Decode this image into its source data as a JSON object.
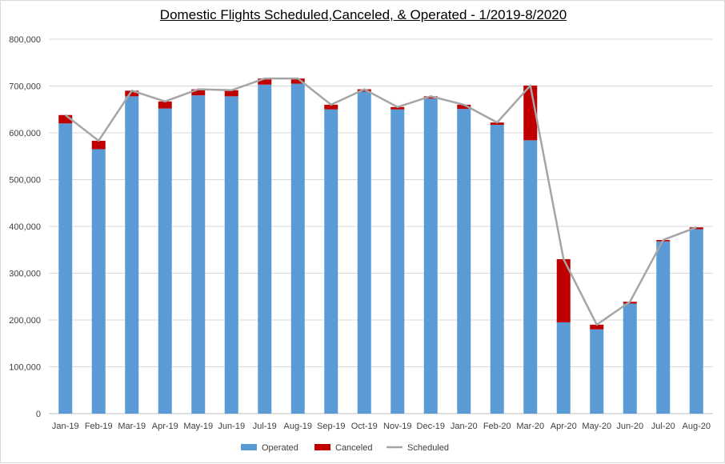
{
  "chart_data": {
    "type": "bar",
    "stacked": true,
    "title": "Domestic Flights Scheduled,Canceled, & Operated - 1/2019-8/2020",
    "categories": [
      "Jan-19",
      "Feb-19",
      "Mar-19",
      "Apr-19",
      "May-19",
      "Jun-19",
      "Jul-19",
      "Aug-19",
      "Sep-19",
      "Oct-19",
      "Nov-19",
      "Dec-19",
      "Jan-20",
      "Feb-20",
      "Mar-20",
      "Apr-20",
      "May-20",
      "Jun-20",
      "Jul-20",
      "Aug-20"
    ],
    "series": [
      {
        "name": "Operated",
        "type": "bar",
        "color": "#5b9bd5",
        "values": [
          620000,
          565000,
          678000,
          652000,
          680000,
          678000,
          703000,
          705000,
          650000,
          688000,
          650000,
          673000,
          651000,
          617000,
          584000,
          195000,
          180000,
          235000,
          368000,
          394000
        ]
      },
      {
        "name": "Canceled",
        "type": "bar",
        "color": "#c00000",
        "values": [
          18000,
          18000,
          12000,
          15000,
          13000,
          13000,
          13000,
          11000,
          10000,
          5000,
          5000,
          5000,
          9000,
          5000,
          117000,
          135000,
          10000,
          4000,
          3000,
          4000
        ]
      },
      {
        "name": "Scheduled",
        "type": "line",
        "color": "#a5a5a5",
        "values": [
          638000,
          583000,
          690000,
          667000,
          693000,
          691000,
          716000,
          716000,
          660000,
          693000,
          655000,
          678000,
          660000,
          622000,
          701000,
          330000,
          190000,
          239000,
          371000,
          398000
        ]
      }
    ],
    "ylim": [
      0,
      800000
    ],
    "yticks": [
      "0",
      "100,000",
      "200,000",
      "300,000",
      "400,000",
      "500,000",
      "600,000",
      "700,000",
      "800,000"
    ],
    "ytick_values": [
      0,
      100000,
      200000,
      300000,
      400000,
      500000,
      600000,
      700000,
      800000
    ],
    "grid": true,
    "legend": "bottom"
  }
}
